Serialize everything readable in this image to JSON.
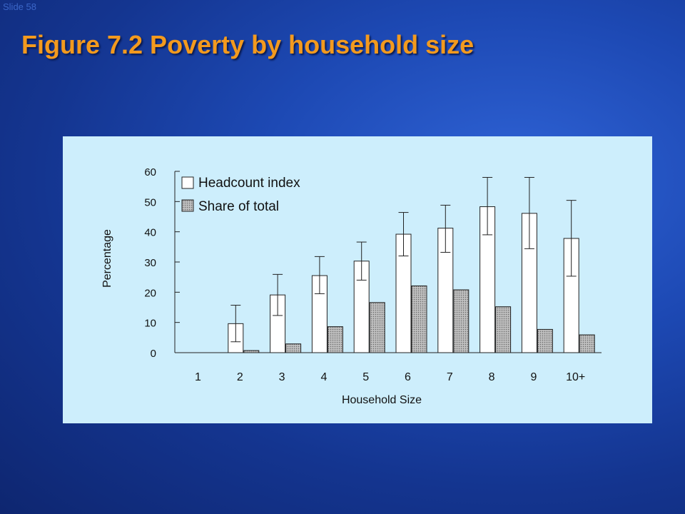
{
  "slide": {
    "number_label": "Slide 58",
    "title": "Figure 7.2 Poverty by household size"
  },
  "colors": {
    "title": "#f39a1e",
    "panel": "#cdeefc",
    "headcount_fill": "#ffffff",
    "share_fill": "#a8a8a8"
  },
  "chart_data": {
    "type": "bar",
    "xlabel": "Household Size",
    "ylabel": "Percentage",
    "ylim": [
      0,
      60
    ],
    "yticks": [
      0,
      10,
      20,
      30,
      40,
      50,
      60
    ],
    "categories": [
      "1",
      "2",
      "3",
      "4",
      "5",
      "6",
      "7",
      "8",
      "9",
      "10+"
    ],
    "legend_position": "top-left",
    "series": [
      {
        "name": "Headcount index",
        "values": [
          0,
          9.6,
          19.1,
          25.5,
          30.3,
          39.2,
          41.2,
          48.3,
          46.1,
          37.8
        ],
        "error_bars": [
          [
            0,
            0
          ],
          [
            3.6,
            15.7
          ],
          [
            12.3,
            25.9
          ],
          [
            19.5,
            31.8
          ],
          [
            24,
            36.6
          ],
          [
            32,
            46.4
          ],
          [
            33.2,
            48.8
          ],
          [
            39,
            58
          ],
          [
            34.4,
            58
          ],
          [
            25.3,
            50.4
          ]
        ]
      },
      {
        "name": "Share of total",
        "values": [
          0,
          0.7,
          2.9,
          8.6,
          16.6,
          22.1,
          20.8,
          15.2,
          7.7,
          5.9
        ]
      }
    ]
  }
}
